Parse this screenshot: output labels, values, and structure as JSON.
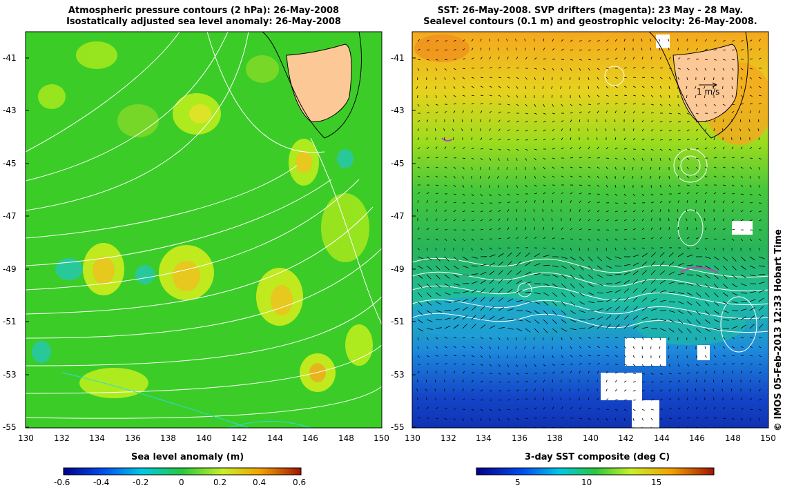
{
  "left_panel": {
    "title_line1": "Atmospheric pressure contours (2 hPa): 26-May-2008",
    "title_line2": "Isostatically adjusted sea level anomaly: 26-May-2008",
    "colorbar_label": "Sea level anomaly (m)",
    "colorbar_ticks": [
      "-0.6",
      "-0.4",
      "-0.2",
      "0",
      "0.2",
      "0.4",
      "0.6"
    ]
  },
  "right_panel": {
    "title_line1": "SST: 26-May-2008. SVP drifters (magenta): 23 May - 28 May.",
    "title_line2": "Sealevel contours (0.1 m) and geostrophic velocity: 26-May-2008.",
    "colorbar_label": "3-day SST composite (deg C)",
    "colorbar_ticks": [
      "5",
      "10",
      "15"
    ],
    "scale_arrow_label": "1 m/s"
  },
  "axes": {
    "x_ticks": [
      "130",
      "132",
      "134",
      "136",
      "138",
      "140",
      "142",
      "144",
      "146",
      "148",
      "150"
    ],
    "y_ticks": [
      "-41",
      "-43",
      "-45",
      "-47",
      "-49",
      "-51",
      "-53",
      "-55"
    ]
  },
  "credit": "© IMOS 05-Feb-2013 12:33 Hobart Time",
  "colors": {
    "land": "#fbc896",
    "left_base": "#3ccc28",
    "contour": "#ffffff",
    "drifter": "#c040c0"
  }
}
